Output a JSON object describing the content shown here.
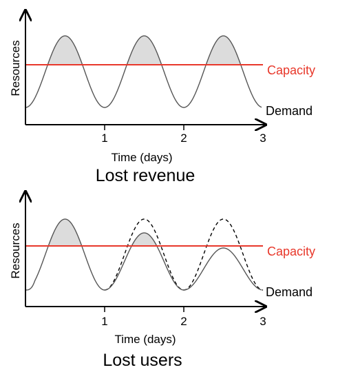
{
  "panels": [
    {
      "ylabel": "Resources",
      "xlabel": "Time (days)",
      "ticks": [
        "1",
        "2",
        "3"
      ],
      "caption": "Lost revenue",
      "capacity_label": "Capacity",
      "demand_label": "Demand"
    },
    {
      "ylabel": "Resources",
      "xlabel": "Time (days)",
      "ticks": [
        "1",
        "2",
        "3"
      ],
      "caption": "Lost users",
      "capacity_label": "Capacity",
      "demand_label": "Demand"
    }
  ],
  "colors": {
    "capacity": "#e8372a",
    "demand": "#555555",
    "shade": "#dcdcdc",
    "axis": "#000000"
  }
}
